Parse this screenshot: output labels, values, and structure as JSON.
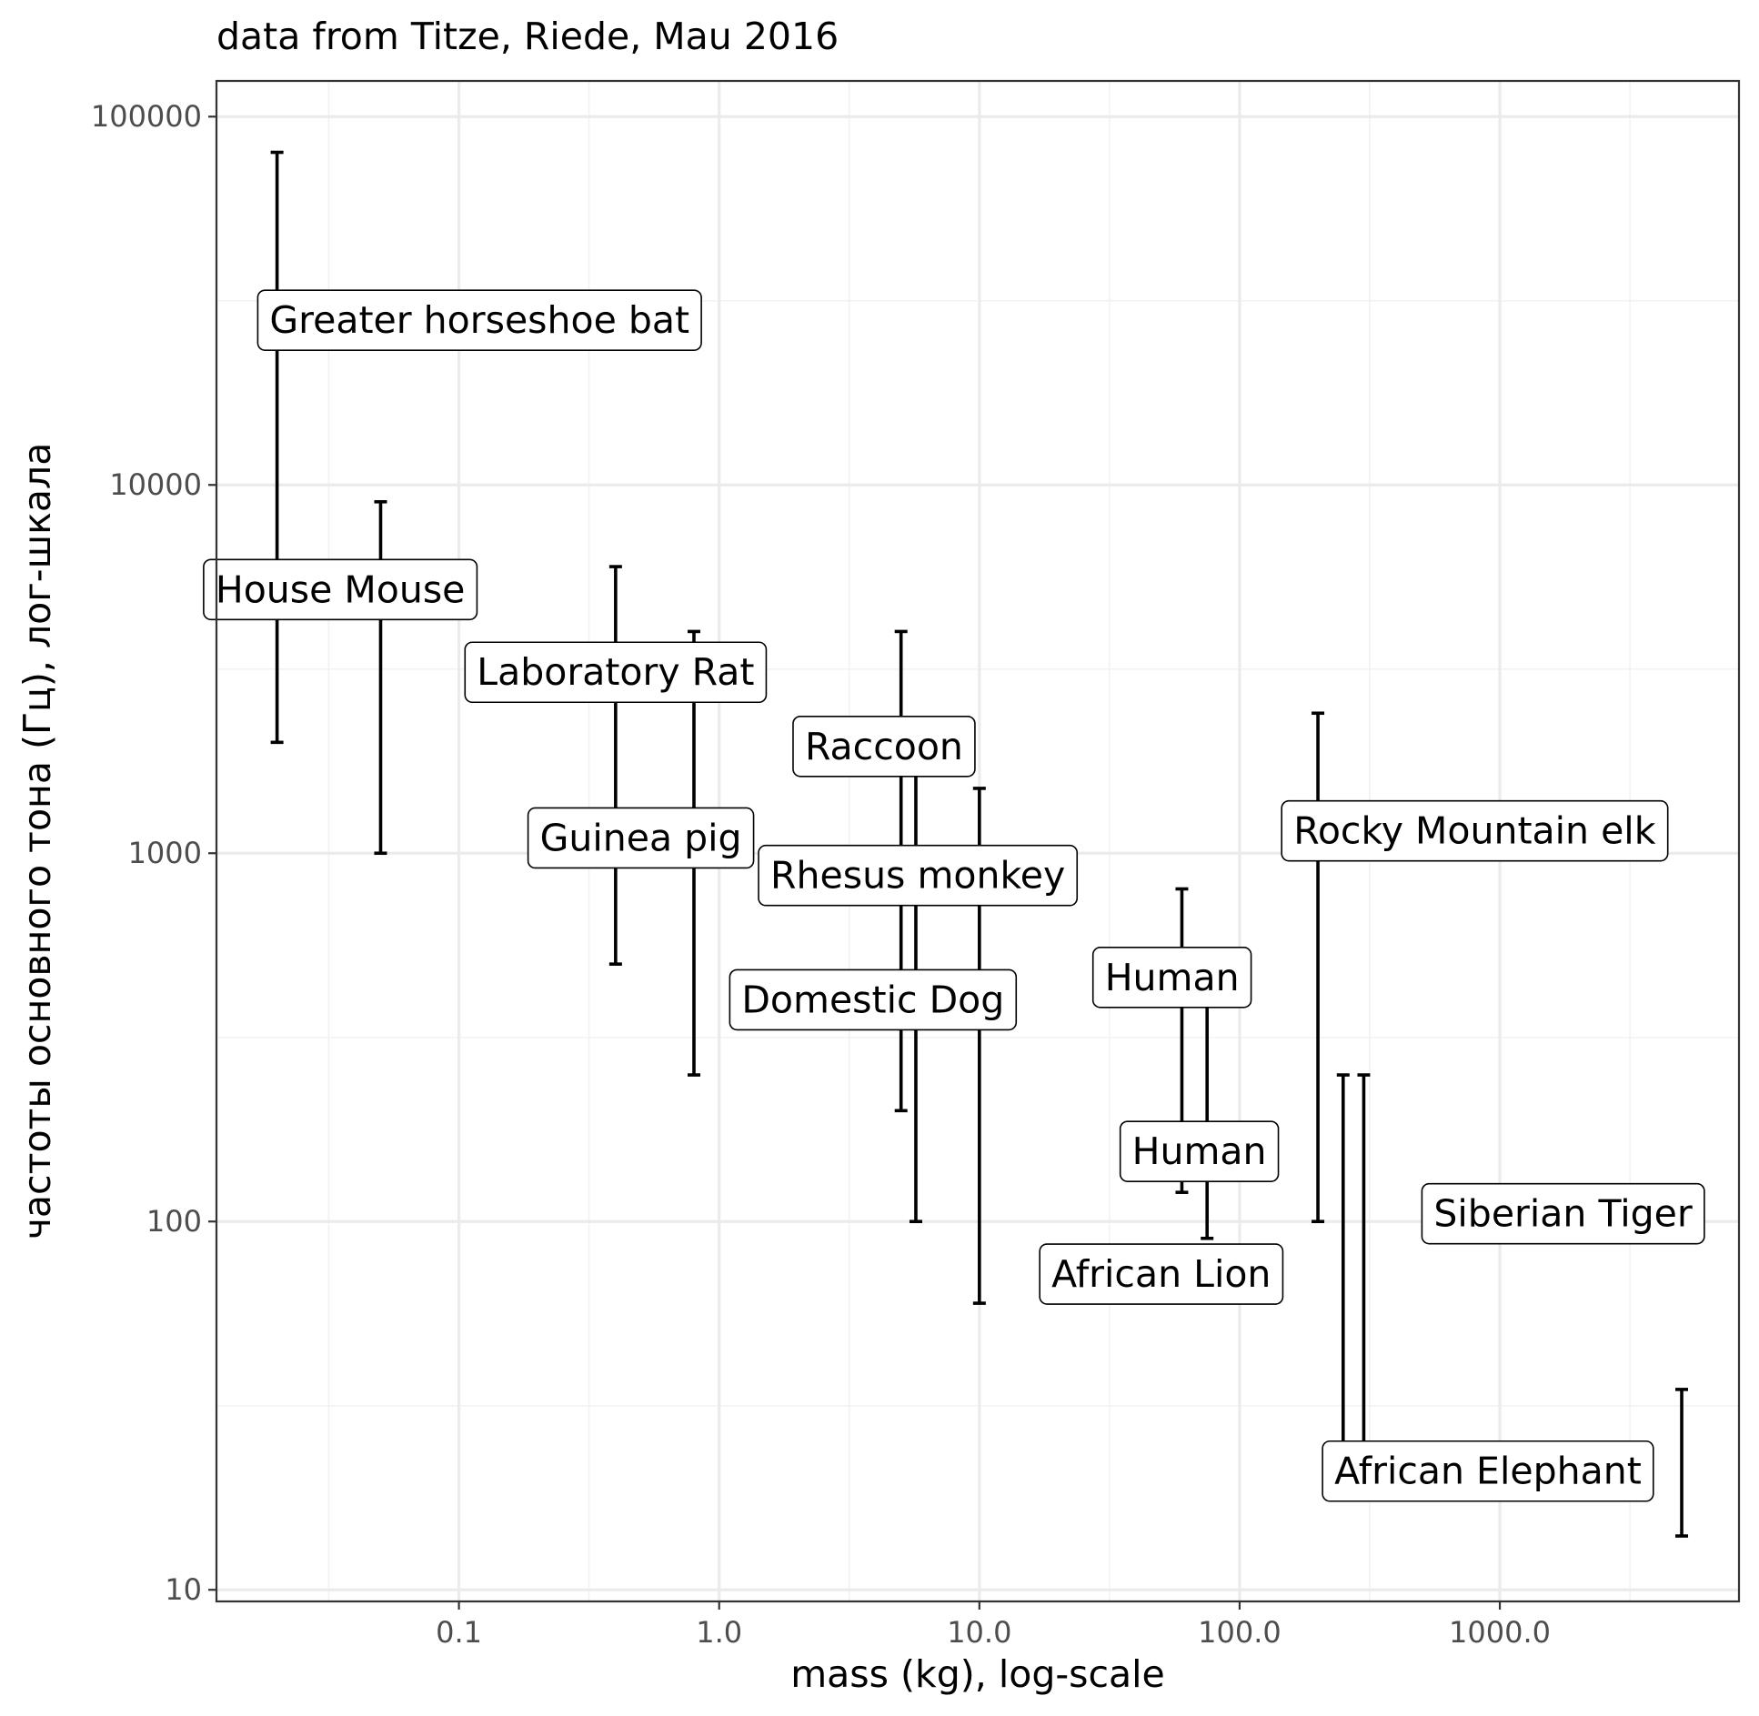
{
  "chart_data": {
    "type": "errorbar",
    "title": "data from Titze, Riede, Mau 2016",
    "xlabel": "mass (kg), log-scale",
    "ylabel": "частоты основного тона (Гц), лог-шкала",
    "x_scale": "log10",
    "y_scale": "log10",
    "xlim": [
      0.0117,
      8300
    ],
    "ylim": [
      9.3,
      125000
    ],
    "x_ticks": [
      0.1,
      1.0,
      10.0,
      100.0,
      1000.0
    ],
    "x_tick_labels": [
      "0.1",
      "1.0",
      "10.0",
      "100.0",
      "1000.0"
    ],
    "y_ticks": [
      10,
      100,
      1000,
      10000,
      100000
    ],
    "y_tick_labels": [
      "10",
      "100",
      "1000",
      "10000",
      "100000"
    ],
    "grid": true,
    "series": [
      {
        "label": "Greater horseshoe bat",
        "mass": 0.02,
        "f_min": 2000,
        "f_max": 80000,
        "label_x": 0.12,
        "label_y": 28000
      },
      {
        "label": "House Mouse",
        "mass": 0.05,
        "f_min": 1000,
        "f_max": 9000,
        "label_x": 0.035,
        "label_y": 5200
      },
      {
        "label": "Laboratory Rat",
        "mass": 0.4,
        "f_min": 500,
        "f_max": 6000,
        "label_x": 0.4,
        "label_y": 3100
      },
      {
        "label": "Guinea pig",
        "mass": 0.8,
        "f_min": 250,
        "f_max": 4000,
        "label_x": 0.5,
        "label_y": 1100
      },
      {
        "label": "Raccoon",
        "mass": 5,
        "f_min": 200,
        "f_max": 4000,
        "label_x": 4.3,
        "label_y": 1950
      },
      {
        "label": "Rhesus monkey",
        "mass": 5.7,
        "f_min": 100,
        "f_max": 1950,
        "label_x": 5.8,
        "label_y": 870
      },
      {
        "label": "Domestic Dog",
        "mass": 10,
        "f_min": 60,
        "f_max": 1500,
        "label_x": 3.9,
        "label_y": 400
      },
      {
        "label": "Human",
        "mass": 60,
        "f_min": 120,
        "f_max": 800,
        "label_x": 55,
        "label_y": 460
      },
      {
        "label": "Human",
        "mass": 75,
        "f_min": 90,
        "f_max": 460,
        "label_x": 70,
        "label_y": 155
      },
      {
        "label": "Rocky Mountain elk",
        "mass": 200,
        "f_min": 100,
        "f_max": 2400,
        "label_x": 800,
        "label_y": 1150
      },
      {
        "label": "African Lion",
        "mass": 250,
        "f_min": 25,
        "f_max": 250,
        "label_x": 50,
        "label_y": 72
      },
      {
        "label": "Siberian Tiger",
        "mass": 300,
        "f_min": 25,
        "f_max": 250,
        "label_x": 1750,
        "label_y": 105
      },
      {
        "label": "African Elephant",
        "mass": 5000,
        "f_min": 14,
        "f_max": 35,
        "label_x": 900,
        "label_y": 21
      }
    ]
  }
}
